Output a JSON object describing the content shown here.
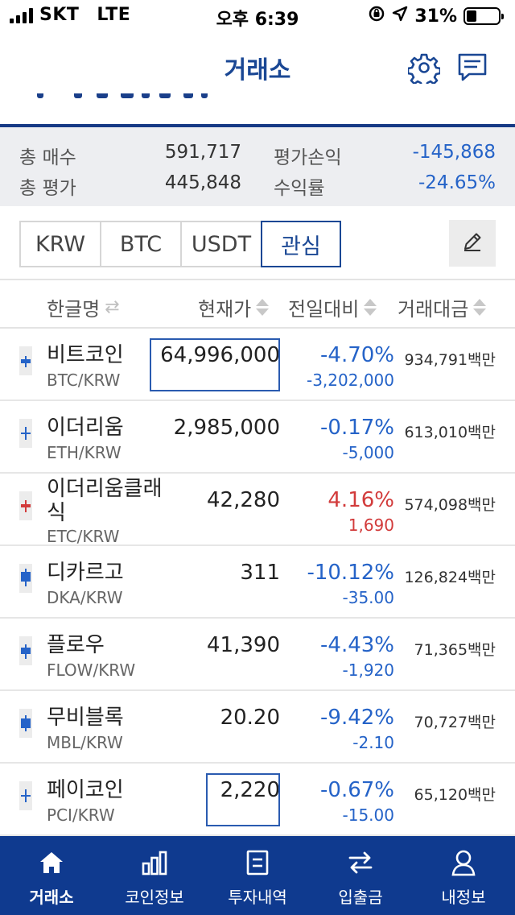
{
  "status_bar": {
    "carrier": "SKT",
    "network": "LTE",
    "time": "오후 6:39",
    "battery": "31%",
    "battery_level": 0.31
  },
  "header": {
    "title": "거래소",
    "settings_icon": "gear-icon",
    "chat_icon": "chat-icon"
  },
  "summary": {
    "total_buy_label": "총 매수",
    "total_buy_value": "591,717",
    "eval_pl_label": "평가손익",
    "eval_pl_value": "-145,868",
    "total_eval_label": "총 평가",
    "total_eval_value": "445,848",
    "yield_label": "수익률",
    "yield_value": "-24.65%"
  },
  "tabs": [
    {
      "label": "KRW",
      "active": false
    },
    {
      "label": "BTC",
      "active": false
    },
    {
      "label": "USDT",
      "active": false
    },
    {
      "label": "관심",
      "active": true
    }
  ],
  "columns": {
    "name": "한글명",
    "price": "현재가",
    "change": "전일대비",
    "volume": "거래대금"
  },
  "coins": [
    {
      "name": "비트코인",
      "ticker": "BTC/KRW",
      "price": "64,996,000",
      "change": "-4.70%",
      "diff": "-3,202,000",
      "volume": "934,791백만",
      "dir": "down"
    },
    {
      "name": "이더리움",
      "ticker": "ETH/KRW",
      "price": "2,985,000",
      "change": "-0.17%",
      "diff": "-5,000",
      "volume": "613,010백만",
      "dir": "down"
    },
    {
      "name": "이더리움클래",
      "name2": "식",
      "ticker": "ETC/KRW",
      "price": "42,280",
      "change": "4.16%",
      "diff": "1,690",
      "volume": "574,098백만",
      "dir": "up"
    },
    {
      "name": "디카르고",
      "ticker": "DKA/KRW",
      "price": "311",
      "change": "-10.12%",
      "diff": "-35.00",
      "volume": "126,824백만",
      "dir": "down"
    },
    {
      "name": "플로우",
      "ticker": "FLOW/KRW",
      "price": "41,390",
      "change": "-4.43%",
      "diff": "-1,920",
      "volume": "71,365백만",
      "dir": "down"
    },
    {
      "name": "무비블록",
      "ticker": "MBL/KRW",
      "price": "20.20",
      "change": "-9.42%",
      "diff": "-2.10",
      "volume": "70,727백만",
      "dir": "down"
    },
    {
      "name": "페이코인",
      "ticker": "PCI/KRW",
      "price": "2,220",
      "change": "-0.67%",
      "diff": "-15.00",
      "volume": "65,120백만",
      "dir": "down"
    }
  ],
  "bottom_nav": [
    {
      "label": "거래소",
      "icon": "home-icon",
      "active": true
    },
    {
      "label": "코인정보",
      "icon": "bar-chart-icon",
      "active": false
    },
    {
      "label": "투자내역",
      "icon": "document-icon",
      "active": false
    },
    {
      "label": "입출금",
      "icon": "transfer-icon",
      "active": false
    },
    {
      "label": "내정보",
      "icon": "user-icon",
      "active": false
    }
  ],
  "colors": {
    "brand": "#1a4794",
    "nav_bg": "#0f3a8f",
    "down": "#2563c8",
    "up": "#d23b3b"
  }
}
